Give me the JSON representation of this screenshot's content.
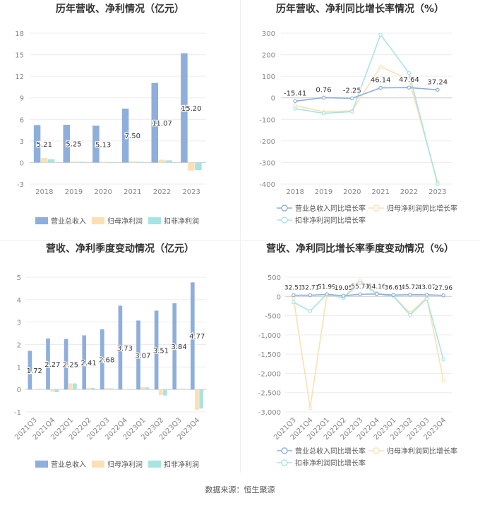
{
  "source_label": "数据来源：恒生聚源",
  "chart_data": [
    {
      "type": "bar",
      "title": "历年营收、净利情况（亿元）",
      "categories": [
        "2018",
        "2019",
        "2020",
        "2021",
        "2022",
        "2023"
      ],
      "series": [
        {
          "name": "营业总收入",
          "color": "#8eaedb",
          "values": [
            5.21,
            5.25,
            5.13,
            7.5,
            11.07,
            15.2
          ],
          "labels": [
            "5.21",
            "5.25",
            "5.13",
            "7.50",
            "11.07",
            "15.20"
          ]
        },
        {
          "name": "归母净利润",
          "color": "#fbe0b5",
          "values": [
            0.62,
            0.15,
            0.1,
            0.15,
            0.4,
            -1.12
          ]
        },
        {
          "name": "扣非净利润",
          "color": "#a8e3e3",
          "values": [
            0.45,
            0.1,
            0.05,
            0.1,
            0.3,
            -1.05
          ]
        }
      ],
      "yticks": [
        -3,
        0,
        3,
        6,
        9,
        12,
        15,
        18
      ],
      "ylim": [
        -3,
        18
      ],
      "grid": true,
      "legend": "bottom"
    },
    {
      "type": "line",
      "title": "历年营收、净利同比增长率情况（%）",
      "categories": [
        "2018",
        "2019",
        "2020",
        "2021",
        "2022",
        "2023"
      ],
      "series": [
        {
          "name": "营业总收入同比增长率",
          "color": "#8eaedb",
          "values": [
            -15.41,
            0.76,
            -2.25,
            46.14,
            47.64,
            37.24
          ],
          "labels": [
            "-15.41",
            "0.76",
            "-2.25",
            "46.14",
            "47.64",
            "37.24"
          ]
        },
        {
          "name": "归母净利润同比增长率",
          "color": "#fbe0b5",
          "values": [
            -35,
            -65,
            -60,
            145,
            85,
            -390
          ]
        },
        {
          "name": "扣非净利润同比增长率",
          "color": "#a8e3e3",
          "values": [
            -50,
            -72,
            -64,
            293,
            115,
            -400
          ]
        }
      ],
      "yticks": [
        -400,
        -300,
        -200,
        -100,
        0,
        100,
        200,
        300
      ],
      "ylim": [
        -400,
        300
      ],
      "grid": true,
      "legend": "bottom"
    },
    {
      "type": "bar",
      "title": "营收、净利季度变动情况（亿元）",
      "categories": [
        "2021Q3",
        "2021Q4",
        "2022Q1",
        "2022Q2",
        "2022Q3",
        "2022Q4",
        "2023Q1",
        "2023Q2",
        "2023Q3",
        "2023Q4"
      ],
      "series": [
        {
          "name": "营业总收入",
          "color": "#8eaedb",
          "values": [
            1.72,
            2.27,
            2.25,
            2.41,
            2.68,
            3.73,
            3.07,
            3.51,
            3.84,
            4.77
          ],
          "labels": [
            "1.72",
            "2.27",
            "2.25",
            "2.41",
            "2.68",
            "3.73",
            "3.07",
            "3.51",
            "3.84",
            "4.77"
          ]
        },
        {
          "name": "归母净利润",
          "color": "#fbe0b5",
          "values": [
            0.02,
            -0.1,
            0.27,
            0.08,
            0.06,
            0.02,
            0.1,
            -0.25,
            0.04,
            -0.92
          ]
        },
        {
          "name": "扣非净利润",
          "color": "#a8e3e3",
          "values": [
            0.01,
            -0.12,
            0.27,
            0.07,
            0.05,
            0.01,
            0.09,
            -0.27,
            0.03,
            -0.85
          ]
        }
      ],
      "yticks": [
        -1,
        0,
        1,
        2,
        3,
        4,
        5
      ],
      "ylim": [
        -1,
        5
      ],
      "grid": true,
      "legend": "bottom"
    },
    {
      "type": "line",
      "title": "营收、净利同比增长率季度变动情况（%）",
      "categories": [
        "2021Q3",
        "2021Q4",
        "2022Q1",
        "2022Q2",
        "2022Q3",
        "2022Q4",
        "2023Q1",
        "2023Q2",
        "2023Q3",
        "2023Q4"
      ],
      "series": [
        {
          "name": "营业总收入同比增长率",
          "color": "#8eaedb",
          "values": [
            32.51,
            32.71,
            51.99,
            19.05,
            55.71,
            64.16,
            36.61,
            45.72,
            43.07,
            27.96
          ],
          "labels": [
            "32.51",
            "32.71",
            "51.99",
            "19.05",
            "55.71",
            "64.16",
            "36.61",
            "45.72",
            "43.07",
            "27.96"
          ]
        },
        {
          "name": "归母净利润同比增长率",
          "color": "#fbe0b5",
          "values": [
            -50,
            -2900,
            30,
            -20,
            420,
            80,
            10,
            -430,
            -30,
            -2180
          ]
        },
        {
          "name": "扣非净利润同比增长率",
          "color": "#a8e3e3",
          "values": [
            -150,
            -380,
            60,
            -40,
            350,
            70,
            0,
            -480,
            -60,
            -1640
          ]
        }
      ],
      "yticks": [
        -3000,
        -2500,
        -2000,
        -1500,
        -1000,
        -500,
        0,
        500
      ],
      "ytick_labels": [
        "-3,000",
        "-2,500",
        "-2,000",
        "-1,500",
        "-1,000",
        "-500",
        "0",
        "500"
      ],
      "ylim": [
        -3000,
        500
      ],
      "grid": true,
      "legend": "bottom"
    }
  ]
}
